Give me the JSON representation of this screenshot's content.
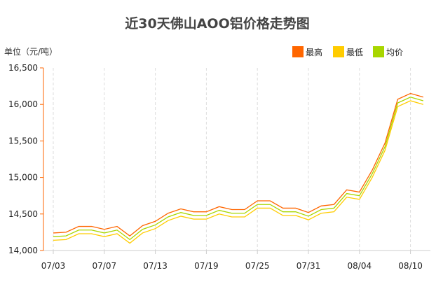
{
  "chart_data": {
    "type": "line",
    "title": "近30天佛山AOO铝价格走势图",
    "ylabel": "单位（元/吨）",
    "ylim": [
      14000,
      16500
    ],
    "yticks": [
      "14,000",
      "14,500",
      "15,000",
      "15,500",
      "16,000",
      "16,500"
    ],
    "ytick_values": [
      14000,
      14500,
      15000,
      15500,
      16000,
      16500
    ],
    "xtick_labels": [
      {
        "index": 0,
        "label": "07/03"
      },
      {
        "index": 4,
        "label": "07/07"
      },
      {
        "index": 8,
        "label": "07/13"
      },
      {
        "index": 12,
        "label": "07/19"
      },
      {
        "index": 16,
        "label": "07/25"
      },
      {
        "index": 20,
        "label": "07/31"
      },
      {
        "index": 24,
        "label": "08/04"
      },
      {
        "index": 28,
        "label": "08/10"
      }
    ],
    "grid": "vertical dashed",
    "legend": "top-right",
    "series": [
      {
        "name": "最高",
        "color": "#ff6600",
        "values": [
          14240,
          14250,
          14330,
          14330,
          14290,
          14330,
          14200,
          14340,
          14400,
          14510,
          14570,
          14530,
          14530,
          14600,
          14560,
          14560,
          14680,
          14680,
          14580,
          14580,
          14520,
          14610,
          14630,
          14830,
          14800,
          15100,
          15470,
          16070,
          16150,
          16100
        ]
      },
      {
        "name": "最低",
        "color": "#ffcc00",
        "values": [
          14140,
          14150,
          14230,
          14230,
          14190,
          14230,
          14100,
          14240,
          14300,
          14410,
          14470,
          14430,
          14430,
          14500,
          14460,
          14460,
          14580,
          14580,
          14480,
          14480,
          14420,
          14510,
          14530,
          14730,
          14700,
          15000,
          15370,
          15970,
          16050,
          16000
        ]
      },
      {
        "name": "均价",
        "color": "#a8d600",
        "values": [
          14190,
          14200,
          14280,
          14280,
          14240,
          14280,
          14150,
          14290,
          14350,
          14460,
          14520,
          14480,
          14480,
          14550,
          14510,
          14510,
          14630,
          14630,
          14530,
          14530,
          14470,
          14560,
          14580,
          14780,
          14750,
          15050,
          15420,
          16020,
          16100,
          16050
        ]
      }
    ]
  }
}
